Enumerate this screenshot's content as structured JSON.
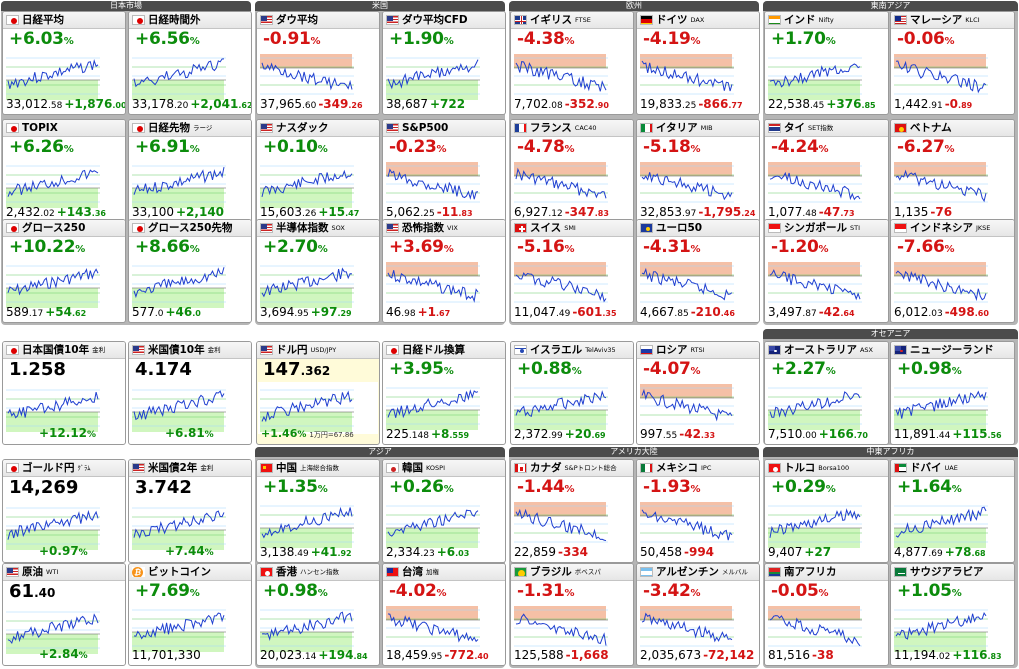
{
  "regions": [
    {
      "name": "日本市場"
    },
    {
      "name": "米国"
    },
    {
      "name": "欧州"
    },
    {
      "name": "東南アジア"
    },
    {
      "name": "オセアニア"
    },
    {
      "name": "アジア"
    },
    {
      "name": "アメリカ大陸"
    },
    {
      "name": "中東アフリカ"
    }
  ],
  "cards": [
    {
      "name": "日経平均",
      "sub": "",
      "chg": "+6.03",
      "unit": "%",
      "price": "33,012",
      "pdec": ".58",
      "delta": "+1,876",
      "ddec": ".00",
      "up": true,
      "flag": "jp",
      "style": "std"
    },
    {
      "name": "日経時間外",
      "sub": "",
      "chg": "+6.56",
      "unit": "%",
      "price": "33,178",
      "pdec": ".20",
      "delta": "+2,041",
      "ddec": ".62",
      "up": true,
      "flag": "jp",
      "style": "std"
    },
    {
      "name": "TOPIX",
      "sub": "",
      "chg": "+6.26",
      "unit": "%",
      "price": "2,432",
      "pdec": ".02",
      "delta": "+143",
      "ddec": ".36",
      "up": true,
      "flag": "jp",
      "style": "std"
    },
    {
      "name": "日経先物",
      "sub": "ラージ",
      "chg": "+6.91",
      "unit": "%",
      "price": "33,100",
      "pdec": "",
      "delta": "+2,140",
      "ddec": "",
      "up": true,
      "flag": "jp",
      "style": "std"
    },
    {
      "name": "グロース250",
      "sub": "",
      "chg": "+10.22",
      "unit": "%",
      "price": "589",
      "pdec": ".17",
      "delta": "+54",
      "ddec": ".62",
      "up": true,
      "flag": "jp",
      "style": "std"
    },
    {
      "name": "グロース250先物",
      "sub": "",
      "chg": "+8.66",
      "unit": "%",
      "price": "577",
      "pdec": ".0",
      "delta": "+46",
      "ddec": ".0",
      "up": true,
      "flag": "jp",
      "style": "std"
    },
    {
      "name": "ダウ平均",
      "sub": "",
      "chg": "-0.91",
      "unit": "%",
      "price": "37,965",
      "pdec": ".60",
      "delta": "-349",
      "ddec": ".26",
      "up": false,
      "flag": "us",
      "style": "std"
    },
    {
      "name": "ダウ平均CFD",
      "sub": "",
      "chg": "+1.90",
      "unit": "%",
      "price": "38,687",
      "pdec": "",
      "delta": "+722",
      "ddec": "",
      "up": true,
      "flag": "us",
      "style": "std"
    },
    {
      "name": "ナスダック",
      "sub": "",
      "chg": "+0.10",
      "unit": "%",
      "price": "15,603",
      "pdec": ".26",
      "delta": "+15",
      "ddec": ".47",
      "up": true,
      "flag": "us",
      "style": "std"
    },
    {
      "name": "S&P500",
      "sub": "",
      "chg": "-0.23",
      "unit": "%",
      "price": "5,062",
      "pdec": ".25",
      "delta": "-11",
      "ddec": ".83",
      "up": false,
      "flag": "us",
      "style": "std"
    },
    {
      "name": "半導体指数",
      "sub": "SOX",
      "chg": "+2.70",
      "unit": "%",
      "price": "3,694",
      "pdec": ".95",
      "delta": "+97",
      "ddec": ".29",
      "up": true,
      "flag": "us",
      "style": "std"
    },
    {
      "name": "恐怖指数",
      "sub": "VIX",
      "chg": "+3.69",
      "unit": "%",
      "price": "46",
      "pdec": ".98",
      "delta": "+1",
      "ddec": ".67",
      "up": false,
      "flag": "us",
      "style": "std"
    },
    {
      "name": "イギリス",
      "sub": "FTSE",
      "chg": "-4.38",
      "unit": "%",
      "price": "7,702",
      "pdec": ".08",
      "delta": "-352",
      "ddec": ".90",
      "up": false,
      "flag": "uk",
      "style": "std"
    },
    {
      "name": "ドイツ",
      "sub": "DAX",
      "chg": "-4.19",
      "unit": "%",
      "price": "19,833",
      "pdec": ".25",
      "delta": "-866",
      "ddec": ".77",
      "up": false,
      "flag": "de",
      "style": "std"
    },
    {
      "name": "フランス",
      "sub": "CAC40",
      "chg": "-4.78",
      "unit": "%",
      "price": "6,927",
      "pdec": ".12",
      "delta": "-347",
      "ddec": ".83",
      "up": false,
      "flag": "fr",
      "style": "std"
    },
    {
      "name": "イタリア",
      "sub": "MIB",
      "chg": "-5.18",
      "unit": "%",
      "price": "32,853",
      "pdec": ".97",
      "delta": "-1,795",
      "ddec": ".24",
      "up": false,
      "flag": "it",
      "style": "std"
    },
    {
      "name": "スイス",
      "sub": "SMI",
      "chg": "-5.16",
      "unit": "%",
      "price": "11,047",
      "pdec": ".49",
      "delta": "-601",
      "ddec": ".35",
      "up": false,
      "flag": "ch",
      "style": "std"
    },
    {
      "name": "ユーロ50",
      "sub": "",
      "chg": "-4.31",
      "unit": "%",
      "price": "4,667",
      "pdec": ".85",
      "delta": "-210",
      "ddec": ".46",
      "up": false,
      "flag": "eu",
      "style": "std"
    },
    {
      "name": "インド",
      "sub": "Nifty",
      "chg": "+1.70",
      "unit": "%",
      "price": "22,538",
      "pdec": ".45",
      "delta": "+376",
      "ddec": ".85",
      "up": true,
      "flag": "in",
      "style": "std"
    },
    {
      "name": "マレーシア",
      "sub": "KLCI",
      "chg": "-0.06",
      "unit": "%",
      "price": "1,442",
      "pdec": ".91",
      "delta": "-0",
      "ddec": ".89",
      "up": false,
      "flag": "my",
      "style": "std"
    },
    {
      "name": "タイ",
      "sub": "SET指数",
      "chg": "-4.24",
      "unit": "%",
      "price": "1,077",
      "pdec": ".48",
      "delta": "-47",
      "ddec": ".73",
      "up": false,
      "flag": "th",
      "style": "std"
    },
    {
      "name": "ベトナム",
      "sub": "",
      "chg": "-6.27",
      "unit": "%",
      "price": "1,135",
      "pdec": "",
      "delta": "-76",
      "ddec": "",
      "up": false,
      "flag": "vn",
      "style": "std"
    },
    {
      "name": "シンガポール",
      "sub": "STI",
      "chg": "-1.20",
      "unit": "%",
      "price": "3,497",
      "pdec": ".87",
      "delta": "-42",
      "ddec": ".64",
      "up": false,
      "flag": "sg",
      "style": "std"
    },
    {
      "name": "インドネシア",
      "sub": "JKSE",
      "chg": "-7.66",
      "unit": "%",
      "price": "6,012",
      "pdec": ".03",
      "delta": "-498",
      "ddec": ".60",
      "up": false,
      "flag": "id",
      "style": "std"
    },
    {
      "name": "日本国債10年",
      "sub": "金利",
      "level": "1.258",
      "ldec": "",
      "bchg": "+12.12",
      "unit": "%",
      "up": true,
      "flag": "jp",
      "style": "bond"
    },
    {
      "name": "米国債10年",
      "sub": "金利",
      "level": "4.174",
      "ldec": "",
      "bchg": "+6.81",
      "unit": "%",
      "up": true,
      "flag": "us",
      "style": "bond"
    },
    {
      "name": "ドル円",
      "sub": "USD/JPY",
      "level": "147",
      "ldec": ".362",
      "bchg": "+1.46",
      "unit": "%",
      "note": "1万円=67.86",
      "up": true,
      "flag": "us",
      "style": "fx"
    },
    {
      "name": "日経ドル換算",
      "sub": "",
      "chg": "+3.95",
      "unit": "%",
      "price": "225",
      "pdec": ".148",
      "delta": "+8",
      "ddec": ".559",
      "up": true,
      "flag": "jp",
      "style": "std"
    },
    {
      "name": "イスラエル",
      "sub": "TelAviv35",
      "chg": "+0.88",
      "unit": "%",
      "price": "2,372",
      "pdec": ".99",
      "delta": "+20",
      "ddec": ".69",
      "up": true,
      "flag": "il",
      "style": "std"
    },
    {
      "name": "ロシア",
      "sub": "RTSI",
      "chg": "-4.07",
      "unit": "%",
      "price": "997",
      "pdec": ".55",
      "delta": "-42",
      "ddec": ".33",
      "up": false,
      "flag": "ru",
      "style": "std"
    },
    {
      "name": "オーストラリア",
      "sub": "ASX",
      "chg": "+2.27",
      "unit": "%",
      "price": "7,510",
      "pdec": ".00",
      "delta": "+166",
      "ddec": ".70",
      "up": true,
      "flag": "au",
      "style": "std"
    },
    {
      "name": "ニュージーランド",
      "sub": "",
      "chg": "+0.98",
      "unit": "%",
      "price": "11,891",
      "pdec": ".44",
      "delta": "+115",
      "ddec": ".56",
      "up": true,
      "flag": "nz",
      "style": "std"
    },
    {
      "name": "ゴールド円",
      "sub": "ｸﾞﾗﾑ",
      "level": "14,269",
      "ldec": "",
      "bchg": "+0.97",
      "unit": "%",
      "up": true,
      "flag": "jp",
      "style": "bond"
    },
    {
      "name": "米国債2年",
      "sub": "金利",
      "level": "3.742",
      "ldec": "",
      "bchg": "+7.44",
      "unit": "%",
      "up": true,
      "flag": "us",
      "style": "bond"
    },
    {
      "name": "中国",
      "sub": "上海総合指数",
      "chg": "+1.35",
      "unit": "%",
      "price": "3,138",
      "pdec": ".49",
      "delta": "+41",
      "ddec": ".92",
      "up": true,
      "flag": "cn",
      "style": "std"
    },
    {
      "name": "韓国",
      "sub": "KOSPI",
      "chg": "+0.26",
      "unit": "%",
      "price": "2,334",
      "pdec": ".23",
      "delta": "+6",
      "ddec": ".03",
      "up": true,
      "flag": "kr",
      "style": "std"
    },
    {
      "name": "カナダ",
      "sub": "S&Pトロント総合",
      "chg": "-1.44",
      "unit": "%",
      "price": "22,859",
      "pdec": "",
      "delta": "-334",
      "ddec": "",
      "up": false,
      "flag": "ca",
      "style": "std"
    },
    {
      "name": "メキシコ",
      "sub": "IPC",
      "chg": "-1.93",
      "unit": "%",
      "price": "50,458",
      "pdec": "",
      "delta": "-994",
      "ddec": "",
      "up": false,
      "flag": "mx",
      "style": "std"
    },
    {
      "name": "トルコ",
      "sub": "Borsa100",
      "chg": "+0.29",
      "unit": "%",
      "price": "9,407",
      "pdec": "",
      "delta": "+27",
      "ddec": "",
      "up": true,
      "flag": "tr",
      "style": "std"
    },
    {
      "name": "ドバイ",
      "sub": "UAE",
      "chg": "+1.64",
      "unit": "%",
      "price": "4,877",
      "pdec": ".69",
      "delta": "+78",
      "ddec": ".68",
      "up": true,
      "flag": "ae",
      "style": "std"
    },
    {
      "name": "原油",
      "sub": "WTI",
      "level": "61",
      "ldec": ".40",
      "bchg": "+2.84",
      "unit": "%",
      "up": true,
      "flag": "us",
      "style": "bond"
    },
    {
      "name": "ビットコイン",
      "sub": "",
      "chg": "+7.69",
      "unit": "%",
      "price": "11,701,330",
      "pdec": "",
      "delta": "",
      "ddec": "",
      "up": true,
      "flag": "btc",
      "style": "std"
    },
    {
      "name": "香港",
      "sub": "ハンセン指数",
      "chg": "+0.98",
      "unit": "%",
      "price": "20,023",
      "pdec": ".14",
      "delta": "+194",
      "ddec": ".84",
      "up": true,
      "flag": "hk",
      "style": "std"
    },
    {
      "name": "台湾",
      "sub": "加権",
      "chg": "-4.02",
      "unit": "%",
      "price": "18,459",
      "pdec": ".95",
      "delta": "-772",
      "ddec": ".40",
      "up": false,
      "flag": "tw",
      "style": "std"
    },
    {
      "name": "ブラジル",
      "sub": "ボベスパ",
      "chg": "-1.31",
      "unit": "%",
      "price": "125,588",
      "pdec": "",
      "delta": "-1,668",
      "ddec": "",
      "up": false,
      "flag": "br",
      "style": "std"
    },
    {
      "name": "アルゼンチン",
      "sub": "メルバル",
      "chg": "-3.42",
      "unit": "%",
      "price": "2,035,673",
      "pdec": "",
      "delta": "-72,142",
      "ddec": "",
      "up": false,
      "flag": "ar",
      "style": "std"
    },
    {
      "name": "南アフリカ",
      "sub": "",
      "chg": "-0.05",
      "unit": "%",
      "price": "81,516",
      "pdec": "",
      "delta": "-38",
      "ddec": "",
      "up": false,
      "flag": "za",
      "style": "std"
    },
    {
      "name": "サウジアラビア",
      "sub": "",
      "chg": "+1.05",
      "unit": "%",
      "price": "11,194",
      "pdec": ".02",
      "delta": "+116",
      "ddec": ".83",
      "up": true,
      "flag": "sa",
      "style": "std"
    }
  ],
  "colors": {
    "up": "#0c8c0c",
    "down": "#d41414",
    "up_fill": "#c8f5b4",
    "down_fill": "#f3b597",
    "line": "#1f3fd0"
  }
}
